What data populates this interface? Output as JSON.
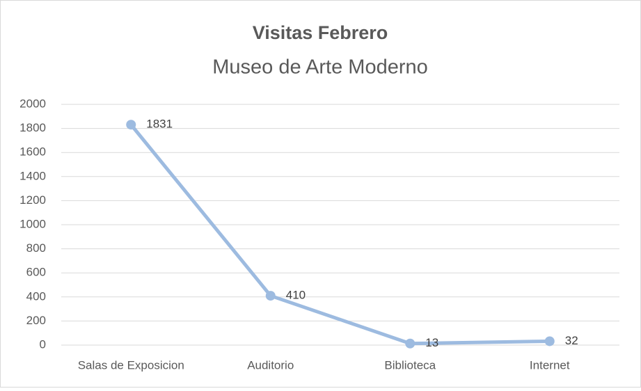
{
  "chart_data": {
    "type": "line",
    "title": "Visitas Febrero",
    "subtitle": "Museo de Arte Moderno",
    "categories": [
      "Salas de Exposicion",
      "Auditorio",
      "Biblioteca",
      "Internet"
    ],
    "values": [
      1831,
      410,
      13,
      32
    ],
    "color": "#9dbbe0",
    "ylim": [
      0,
      2000
    ],
    "yticks": [
      0,
      200,
      400,
      600,
      800,
      1000,
      1200,
      1400,
      1600,
      1800,
      2000
    ],
    "grid": true,
    "data_labels": true
  }
}
